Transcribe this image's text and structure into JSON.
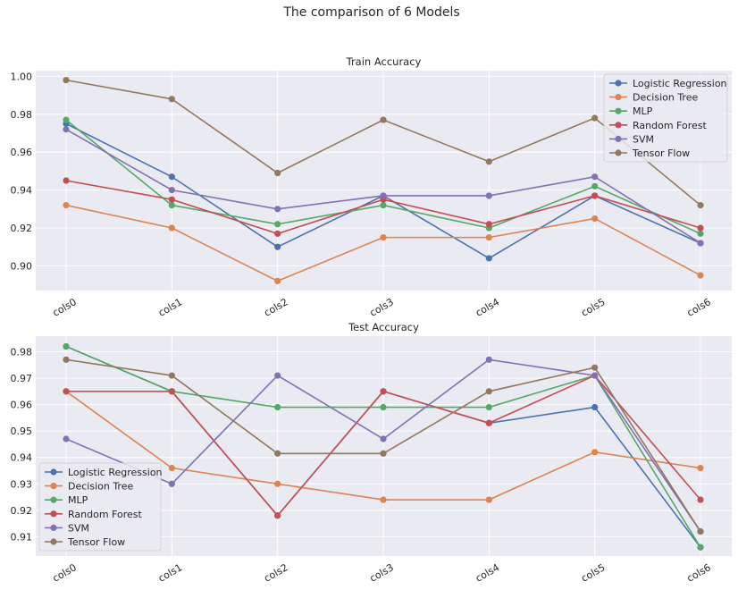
{
  "figure": {
    "title": "The comparison of 6 Models"
  },
  "chart_data": [
    {
      "type": "line",
      "title": "Train Accuracy",
      "xlabel": "",
      "ylabel": "",
      "categories": [
        "cols0",
        "cols1",
        "cols2",
        "cols3",
        "cols4",
        "cols5",
        "cols6"
      ],
      "ylim": [
        0.887,
        1.003
      ],
      "yticks": [
        0.9,
        0.92,
        0.94,
        0.96,
        0.98,
        1.0
      ],
      "ytick_labels": [
        "0.90",
        "0.92",
        "0.94",
        "0.96",
        "0.98",
        "1.00"
      ],
      "grid": true,
      "legend_position": "upper-right",
      "series": [
        {
          "name": "Logistic Regression",
          "color": "#4c72b0",
          "values": [
            0.975,
            0.947,
            0.91,
            0.937,
            0.904,
            0.937,
            0.912
          ]
        },
        {
          "name": "Decision Tree",
          "color": "#dd8452",
          "values": [
            0.932,
            0.92,
            0.892,
            0.915,
            0.915,
            0.925,
            0.895
          ]
        },
        {
          "name": "MLP",
          "color": "#55a868",
          "values": [
            0.977,
            0.932,
            0.922,
            0.932,
            0.92,
            0.942,
            0.917
          ]
        },
        {
          "name": "Random Forest",
          "color": "#c44e52",
          "values": [
            0.945,
            0.935,
            0.917,
            0.935,
            0.922,
            0.937,
            0.92
          ]
        },
        {
          "name": "SVM",
          "color": "#8172b3",
          "values": [
            0.972,
            0.94,
            0.93,
            0.937,
            0.937,
            0.947,
            0.912
          ]
        },
        {
          "name": "Tensor Flow",
          "color": "#937860",
          "values": [
            0.998,
            0.988,
            0.949,
            0.977,
            0.955,
            0.978,
            0.932
          ]
        }
      ]
    },
    {
      "type": "line",
      "title": "Test Accuracy",
      "xlabel": "",
      "ylabel": "",
      "categories": [
        "cols0",
        "cols1",
        "cols2",
        "cols3",
        "cols4",
        "cols5",
        "cols6"
      ],
      "ylim": [
        0.9027,
        0.9859
      ],
      "yticks": [
        0.91,
        0.92,
        0.93,
        0.94,
        0.95,
        0.96,
        0.97,
        0.98
      ],
      "ytick_labels": [
        "0.91",
        "0.92",
        "0.93",
        "0.94",
        "0.95",
        "0.96",
        "0.97",
        "0.98"
      ],
      "grid": true,
      "legend_position": "lower-left",
      "series": [
        {
          "name": "Logistic Regression",
          "color": "#4c72b0",
          "values": [
            0.982,
            0.965,
            0.918,
            0.965,
            0.953,
            0.959,
            0.906
          ]
        },
        {
          "name": "Decision Tree",
          "color": "#dd8452",
          "values": [
            0.965,
            0.936,
            0.93,
            0.924,
            0.924,
            0.942,
            0.936
          ]
        },
        {
          "name": "MLP",
          "color": "#55a868",
          "values": [
            0.982,
            0.965,
            0.959,
            0.959,
            0.959,
            0.971,
            0.906
          ]
        },
        {
          "name": "Random Forest",
          "color": "#c44e52",
          "values": [
            0.965,
            0.965,
            0.918,
            0.965,
            0.953,
            0.971,
            0.924
          ]
        },
        {
          "name": "SVM",
          "color": "#8172b3",
          "values": [
            0.947,
            0.93,
            0.971,
            0.947,
            0.977,
            0.971,
            0.912
          ]
        },
        {
          "name": "Tensor Flow",
          "color": "#937860",
          "values": [
            0.977,
            0.971,
            0.9415,
            0.9415,
            0.965,
            0.974,
            0.912
          ]
        }
      ]
    }
  ]
}
